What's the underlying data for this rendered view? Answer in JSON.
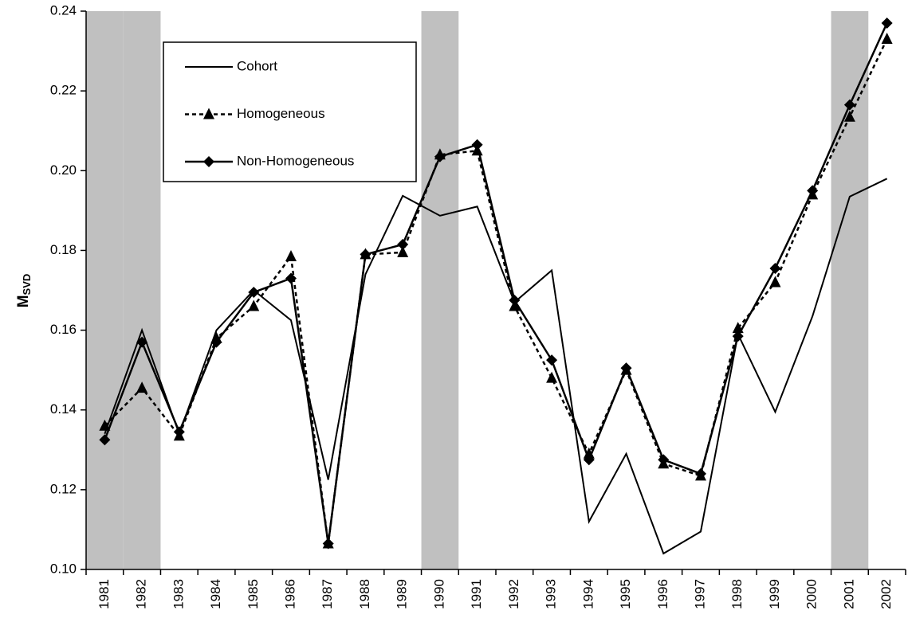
{
  "chart_data": {
    "type": "line",
    "ylabel": "M",
    "ylabel_subscript": "SVD",
    "categories": [
      "1981",
      "1982",
      "1983",
      "1984",
      "1985",
      "1986",
      "1987",
      "1988",
      "1989",
      "1990",
      "1991",
      "1992",
      "1993",
      "1994",
      "1995",
      "1996",
      "1997",
      "1998",
      "1999",
      "2000",
      "2001",
      "2002"
    ],
    "shaded_categories": [
      "1981",
      "1982",
      "1990",
      "2001"
    ],
    "shade_color": "#c0c0c0",
    "ylim": [
      0.1,
      0.24
    ],
    "yticks": [
      {
        "value": 0.1,
        "label": "0.10"
      },
      {
        "value": 0.12,
        "label": "0.12"
      },
      {
        "value": 0.14,
        "label": "0.14"
      },
      {
        "value": 0.16,
        "label": "0.16"
      },
      {
        "value": 0.18,
        "label": "0.18"
      },
      {
        "value": 0.2,
        "label": "0.20"
      },
      {
        "value": 0.22,
        "label": "0.22"
      },
      {
        "value": 0.24,
        "label": "0.24"
      }
    ],
    "legend_position": "upper left",
    "series": [
      {
        "name": "Cohort",
        "color": "#000000",
        "dash": "solid",
        "marker": "none",
        "width": 2,
        "values": [
          0.134,
          0.16,
          0.134,
          0.16,
          0.17,
          0.1625,
          0.1225,
          0.174,
          0.1937,
          0.1887,
          0.191,
          0.167,
          0.175,
          0.112,
          0.129,
          0.104,
          0.1095,
          0.159,
          0.1395,
          0.1635,
          0.1935,
          0.198
        ]
      },
      {
        "name": "Homogeneous",
        "color": "#000000",
        "dash": "dashed",
        "marker": "triangle",
        "width": 2.5,
        "values": [
          0.136,
          0.1455,
          0.1335,
          0.158,
          0.166,
          0.1785,
          0.1065,
          0.179,
          0.1795,
          0.204,
          0.205,
          0.166,
          0.148,
          0.129,
          0.15,
          0.1265,
          0.1235,
          0.1605,
          0.172,
          0.194,
          0.2135,
          0.233
        ]
      },
      {
        "name": "Non-Homogeneous",
        "color": "#000000",
        "dash": "solid",
        "marker": "diamond",
        "width": 2.5,
        "values": [
          0.1325,
          0.157,
          0.1345,
          0.157,
          0.1695,
          0.173,
          0.1065,
          0.179,
          0.1815,
          0.2035,
          0.2065,
          0.1675,
          0.1525,
          0.1275,
          0.1505,
          0.1275,
          0.124,
          0.1585,
          0.1755,
          0.195,
          0.2165,
          0.237
        ]
      }
    ]
  }
}
